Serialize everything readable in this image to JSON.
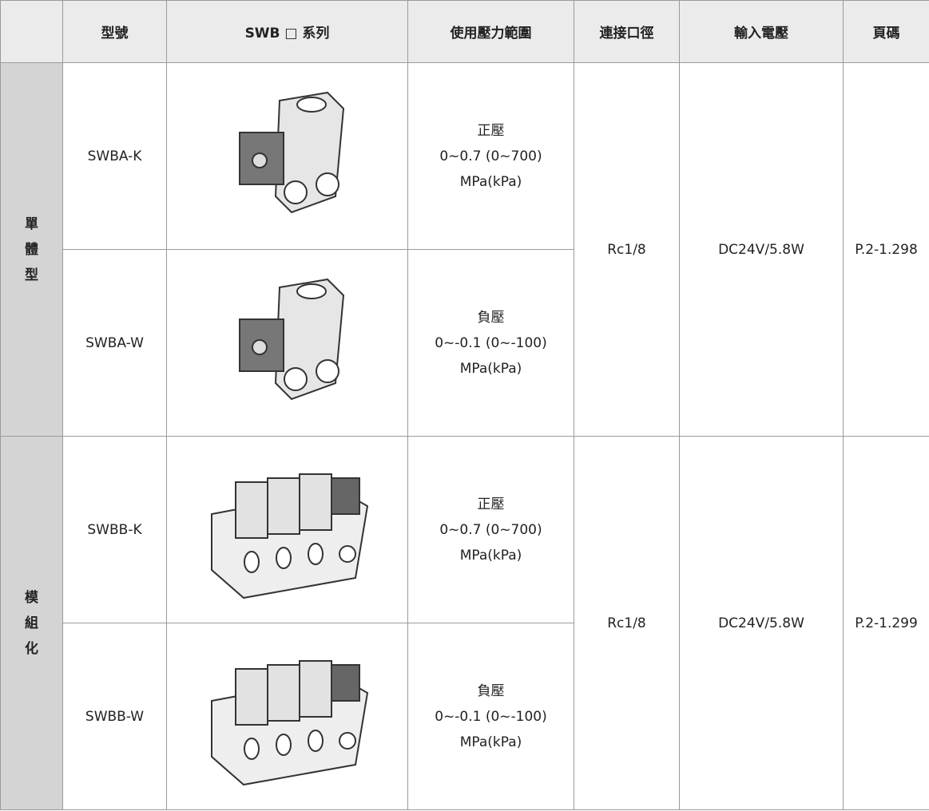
{
  "table": {
    "header": [
      "",
      "型號",
      "SWB □ 系列",
      "使用壓力範圍",
      "連接口徑",
      "輸入電壓",
      "頁碼"
    ],
    "groups": [
      {
        "label": [
          "單",
          "體",
          "型"
        ],
        "port": "Rc1/8",
        "voltage": "DC24V/5.8W",
        "page": "P.2-1.298",
        "rows": [
          {
            "model": "SWBA-K",
            "pressure": [
              "正壓",
              "0~0.7 (0~700)",
              "MPa(kPa)"
            ]
          },
          {
            "model": "SWBA-W",
            "pressure": [
              "負壓",
              "0~-0.1 (0~-100)",
              "MPa(kPa)"
            ]
          }
        ]
      },
      {
        "label": [
          "模",
          "組",
          "化"
        ],
        "port": "Rc1/8",
        "voltage": "DC24V/5.8W",
        "page": "P.2-1.299",
        "rows": [
          {
            "model": "SWBB-K",
            "pressure": [
              "正壓",
              "0~0.7 (0~700)",
              "MPa(kPa)"
            ]
          },
          {
            "model": "SWBB-W",
            "pressure": [
              "負壓",
              "0~-0.1 (0~-100)",
              "MPa(kPa)"
            ]
          }
        ]
      }
    ]
  }
}
